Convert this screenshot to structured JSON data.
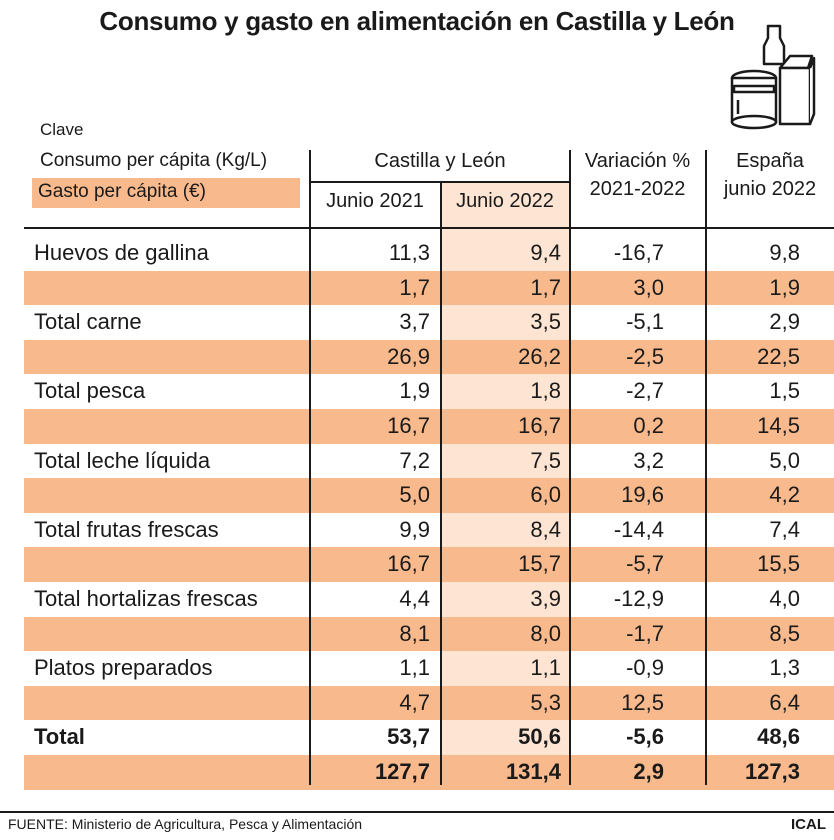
{
  "title": "Consumo y gasto en alimentación en Castilla y León",
  "legend": {
    "title": "Clave",
    "consumo": "Consumo per cápita (Kg/L)",
    "gasto": "Gasto per cápita (€)"
  },
  "headers": {
    "group_cyl": "Castilla y León",
    "junio_2021": "Junio 2021",
    "junio_2022": "Junio 2022",
    "variacion_1": "Variación %",
    "variacion_2": "2021-2022",
    "espana_1": "España",
    "espana_2": "junio 2022"
  },
  "colors": {
    "gasto_row": "#f8b98c",
    "junio_2022_column": "#fde4d3"
  },
  "icons": [
    "groceries-icon"
  ],
  "chart_data": {
    "type": "table",
    "columns": [
      "",
      "Junio 2021",
      "Junio 2022",
      "Variación % 2021-2022",
      "España junio 2022"
    ],
    "rows": [
      {
        "label": "Huevos de gallina",
        "kind": "consumo",
        "values": [
          "11,3",
          "9,4",
          "-16,7",
          "9,8"
        ]
      },
      {
        "label": "",
        "kind": "gasto",
        "values": [
          "1,7",
          "1,7",
          "3,0",
          "1,9"
        ]
      },
      {
        "label": "Total carne",
        "kind": "consumo",
        "values": [
          "3,7",
          "3,5",
          "-5,1",
          "2,9"
        ]
      },
      {
        "label": "",
        "kind": "gasto",
        "values": [
          "26,9",
          "26,2",
          "-2,5",
          "22,5"
        ]
      },
      {
        "label": "Total pesca",
        "kind": "consumo",
        "values": [
          "1,9",
          "1,8",
          "-2,7",
          "1,5"
        ]
      },
      {
        "label": "",
        "kind": "gasto",
        "values": [
          "16,7",
          "16,7",
          "0,2",
          "14,5"
        ]
      },
      {
        "label": "Total leche líquida",
        "kind": "consumo",
        "values": [
          "7,2",
          "7,5",
          "3,2",
          "5,0"
        ]
      },
      {
        "label": "",
        "kind": "gasto",
        "values": [
          "5,0",
          "6,0",
          "19,6",
          "4,2"
        ]
      },
      {
        "label": "Total frutas frescas",
        "kind": "consumo",
        "values": [
          "9,9",
          "8,4",
          "-14,4",
          "7,4"
        ]
      },
      {
        "label": "",
        "kind": "gasto",
        "values": [
          "16,7",
          "15,7",
          "-5,7",
          "15,5"
        ]
      },
      {
        "label": "Total hortalizas frescas",
        "kind": "consumo",
        "values": [
          "4,4",
          "3,9",
          "-12,9",
          "4,0"
        ]
      },
      {
        "label": "",
        "kind": "gasto",
        "values": [
          "8,1",
          "8,0",
          "-1,7",
          "8,5"
        ]
      },
      {
        "label": "Platos preparados",
        "kind": "consumo",
        "values": [
          "1,1",
          "1,1",
          "-0,9",
          "1,3"
        ]
      },
      {
        "label": "",
        "kind": "gasto",
        "values": [
          "4,7",
          "5,3",
          "12,5",
          "6,4"
        ]
      },
      {
        "label": "Total",
        "kind": "consumo total",
        "values": [
          "53,7",
          "50,6",
          "-5,6",
          "48,6"
        ]
      },
      {
        "label": "",
        "kind": "gasto total",
        "values": [
          "127,7",
          "131,4",
          "2,9",
          "127,3"
        ]
      }
    ]
  },
  "footer": {
    "source": "FUENTE: Ministerio de Agricultura, Pesca y Alimentación",
    "brand": "ICAL"
  }
}
